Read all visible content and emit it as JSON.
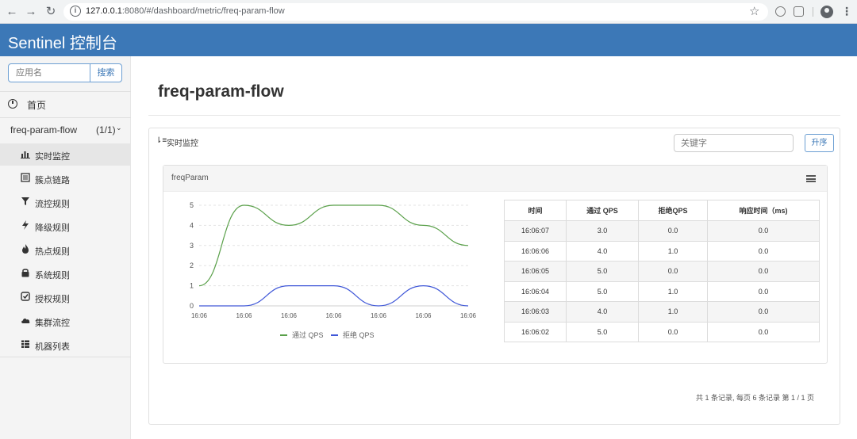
{
  "browser": {
    "url_host": "127.0.0.1",
    "url_rest": ":8080/#/dashboard/metric/freq-param-flow"
  },
  "header": {
    "brand": "Sentinel 控制台"
  },
  "sidebar": {
    "search_placeholder": "应用名",
    "search_button": "搜索",
    "home_label": "首页",
    "app": {
      "name": "freq-param-flow",
      "count": "(1/1)"
    },
    "items": [
      {
        "label": "实时监控",
        "icon": "bar-chart-icon"
      },
      {
        "label": "簇点链路",
        "icon": "list-icon"
      },
      {
        "label": "流控规则",
        "icon": "filter-icon"
      },
      {
        "label": "降级规则",
        "icon": "flash-icon"
      },
      {
        "label": "热点规则",
        "icon": "fire-icon"
      },
      {
        "label": "系统规则",
        "icon": "lock-icon"
      },
      {
        "label": "授权规则",
        "icon": "check-icon"
      },
      {
        "label": "集群流控",
        "icon": "cloud-icon"
      },
      {
        "label": "机器列表",
        "icon": "th-list-icon"
      }
    ]
  },
  "main": {
    "title": "freq-param-flow",
    "panel_title": "实时监控",
    "keyword_placeholder": "关键字",
    "sort_button": "升序",
    "resource_name": "freqParam",
    "pager": "共 1 条记录, 每页 6 条记录 第 1 / 1 页"
  },
  "chart_data": {
    "type": "line",
    "x": [
      "16:06",
      "16:06",
      "16:06",
      "16:06",
      "16:06",
      "16:06",
      "16:06"
    ],
    "ylim": [
      0,
      5
    ],
    "yticks": [
      "0",
      "1",
      "2",
      "3",
      "4",
      "5"
    ],
    "series": [
      {
        "name": "通过 QPS",
        "color": "#5aa04a",
        "values": [
          1,
          5,
          4,
          5,
          5,
          4,
          3
        ]
      },
      {
        "name": "拒绝 QPS",
        "color": "#4058d8",
        "values": [
          0,
          0,
          1,
          1,
          0,
          1,
          0
        ]
      }
    ],
    "grid": true,
    "legend": "bottom"
  },
  "table": {
    "headers": [
      "时间",
      "通过 QPS",
      "拒绝QPS",
      "响应时间（ms)"
    ],
    "rows": [
      [
        "16:06:07",
        "3.0",
        "0.0",
        "0.0"
      ],
      [
        "16:06:06",
        "4.0",
        "1.0",
        "0.0"
      ],
      [
        "16:06:05",
        "5.0",
        "0.0",
        "0.0"
      ],
      [
        "16:06:04",
        "5.0",
        "1.0",
        "0.0"
      ],
      [
        "16:06:03",
        "4.0",
        "1.0",
        "0.0"
      ],
      [
        "16:06:02",
        "5.0",
        "0.0",
        "0.0"
      ]
    ]
  }
}
